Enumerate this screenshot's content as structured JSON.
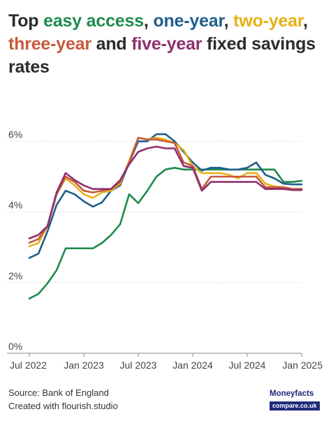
{
  "title": {
    "parts": [
      {
        "text": "Top ",
        "color": "#2b2b2b"
      },
      {
        "text": "easy access",
        "color": "#1f8a4c"
      },
      {
        "text": ", ",
        "color": "#2b2b2b"
      },
      {
        "text": "one-year",
        "color": "#1f5f8b"
      },
      {
        "text": ", ",
        "color": "#2b2b2b"
      },
      {
        "text": "two-year",
        "color": "#e6b117"
      },
      {
        "text": ", ",
        "color": "#2b2b2b"
      },
      {
        "text": "three-year",
        "color": "#c75a3d"
      },
      {
        "text": " and ",
        "color": "#2b2b2b"
      },
      {
        "text": "five-year",
        "color": "#8e2f6e"
      },
      {
        "text": " fixed savings rates",
        "color": "#2b2b2b"
      }
    ]
  },
  "footer": {
    "source": "Source: Bank of England",
    "created": "Created with flourish.studio"
  },
  "logo": {
    "line1": "Moneyfacts",
    "line2": "compare.co.uk"
  },
  "chart_data": {
    "type": "line",
    "title": "Top easy access, one-year, two-year, three-year and five-year fixed savings rates",
    "xlabel": "",
    "ylabel": "",
    "ylim": [
      0,
      6.6
    ],
    "yticks": [
      0,
      2,
      4,
      6
    ],
    "ytick_labels": [
      "0%",
      "2%",
      "4%",
      "6%"
    ],
    "x_tick_labels": [
      "Jul 2022",
      "Jan 2023",
      "Jul 2023",
      "Jan 2024",
      "Jul 2024",
      "Jan 2025"
    ],
    "x": [
      "2022-07",
      "2022-08",
      "2022-09",
      "2022-10",
      "2022-11",
      "2022-12",
      "2023-01",
      "2023-02",
      "2023-03",
      "2023-04",
      "2023-05",
      "2023-06",
      "2023-07",
      "2023-08",
      "2023-09",
      "2023-10",
      "2023-11",
      "2023-12",
      "2024-01",
      "2024-02",
      "2024-03",
      "2024-04",
      "2024-05",
      "2024-06",
      "2024-07",
      "2024-08",
      "2024-09",
      "2024-10",
      "2024-11",
      "2024-12",
      "2025-01"
    ],
    "grid": true,
    "legend": "none",
    "series": [
      {
        "name": "easy access",
        "color": "#1f8a4c",
        "values": [
          1.55,
          1.68,
          1.98,
          2.35,
          2.97,
          2.97,
          2.97,
          2.97,
          3.12,
          3.35,
          3.65,
          4.5,
          4.25,
          4.6,
          5.0,
          5.2,
          5.25,
          5.2,
          5.2,
          5.2,
          5.2,
          5.2,
          5.2,
          5.2,
          5.2,
          5.2,
          5.2,
          5.2,
          4.85,
          4.85,
          4.88
        ]
      },
      {
        "name": "one-year",
        "color": "#1f5f8b",
        "values": [
          2.7,
          2.82,
          3.45,
          4.2,
          4.6,
          4.5,
          4.3,
          4.15,
          4.27,
          4.6,
          4.75,
          5.4,
          6.0,
          6.0,
          6.2,
          6.2,
          6.0,
          5.7,
          5.4,
          5.17,
          5.25,
          5.25,
          5.2,
          5.2,
          5.25,
          5.4,
          5.05,
          4.95,
          4.8,
          4.78,
          4.78
        ]
      },
      {
        "name": "two-year",
        "color": "#e6b117",
        "values": [
          3.03,
          3.12,
          3.6,
          4.5,
          4.95,
          4.75,
          4.5,
          4.4,
          4.55,
          4.6,
          4.8,
          5.45,
          6.1,
          6.05,
          6.1,
          6.05,
          5.95,
          5.75,
          5.3,
          5.1,
          5.1,
          5.1,
          5.05,
          4.95,
          5.1,
          5.1,
          4.8,
          4.72,
          4.7,
          4.65,
          4.65
        ]
      },
      {
        "name": "three-year",
        "color": "#c75a3d",
        "values": [
          3.13,
          3.23,
          3.6,
          4.5,
          5.0,
          4.85,
          4.6,
          4.55,
          4.6,
          4.65,
          4.85,
          5.4,
          6.1,
          6.05,
          6.05,
          6.0,
          5.95,
          5.4,
          5.3,
          4.65,
          5.0,
          5.0,
          5.0,
          5.0,
          5.0,
          5.0,
          4.7,
          4.7,
          4.7,
          4.65,
          4.65
        ]
      },
      {
        "name": "five-year",
        "color": "#8e2f6e",
        "values": [
          3.25,
          3.35,
          3.6,
          4.55,
          5.1,
          4.9,
          4.75,
          4.65,
          4.65,
          4.65,
          4.9,
          5.35,
          5.7,
          5.8,
          5.85,
          5.8,
          5.8,
          5.3,
          5.25,
          4.6,
          4.85,
          4.85,
          4.85,
          4.85,
          4.85,
          4.85,
          4.65,
          4.65,
          4.65,
          4.62,
          4.62
        ]
      }
    ]
  }
}
